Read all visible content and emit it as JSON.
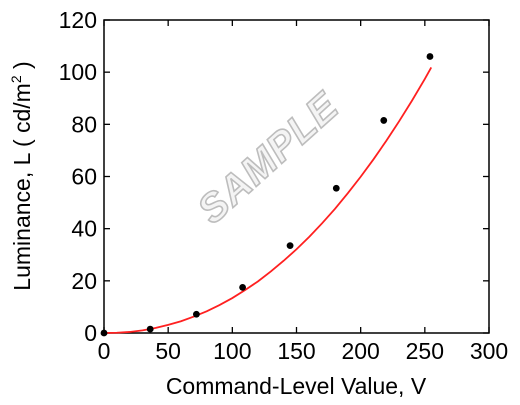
{
  "chart_data": {
    "type": "scatter",
    "xlabel": "Command-Level Value, V",
    "ylabel_main": "Luminance, L ( cd/m",
    "ylabel_sup": "2",
    "ylabel_end": " )",
    "xlim": [
      0,
      300
    ],
    "ylim": [
      0,
      120
    ],
    "xticks": [
      0,
      50,
      100,
      150,
      200,
      250,
      300
    ],
    "yticks": [
      0,
      20,
      40,
      60,
      80,
      100,
      120
    ],
    "grid": false,
    "watermark": "SAMPLE",
    "series": [
      {
        "marker_color": "#000000",
        "x": [
          0,
          36,
          72,
          108,
          145,
          181,
          218,
          254
        ],
        "y": [
          0,
          1.5,
          7.2,
          17.5,
          33.5,
          55.5,
          81.5,
          106
        ]
      }
    ],
    "fit_curve": {
      "color": "#ff2020",
      "x": [
        0,
        10,
        20,
        30,
        40,
        50,
        60,
        70,
        80,
        90,
        100,
        110,
        120,
        130,
        140,
        150,
        160,
        170,
        180,
        190,
        200,
        210,
        220,
        230,
        240,
        250,
        255
      ],
      "y": [
        0,
        0.1,
        0.4,
        1.0,
        1.9,
        3.1,
        4.5,
        6.3,
        8.3,
        10.7,
        13.4,
        16.5,
        19.8,
        23.6,
        27.7,
        32.1,
        36.9,
        42.1,
        47.6,
        53.6,
        59.9,
        66.6,
        73.7,
        81.2,
        89.1,
        97.4,
        101.8
      ]
    }
  }
}
